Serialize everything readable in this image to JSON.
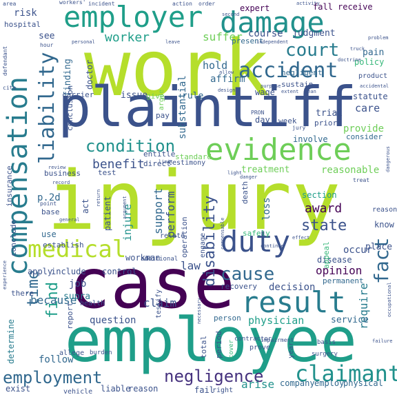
{
  "wordcloud": {
    "words": {
      "injury": "injury",
      "work": "work",
      "plaintiff": "plaintiff",
      "employee": "employee",
      "case": "case",
      "employer": "employer",
      "damage": "damage",
      "evidence": "evidence",
      "compensation": "compensation",
      "result": "result",
      "duty": "duty",
      "medical": "medical",
      "accident": "accident",
      "court": "court",
      "liability": "liability",
      "condition": "condition",
      "claimant": "claimant",
      "employment": "employment",
      "negligence": "negligence",
      "cause": "cause",
      "fact": "fact",
      "benefit": "benefit",
      "time": "time",
      "find": "find",
      "disability": "disability",
      "state": "state",
      "award": "award",
      "opinion": "opinion",
      "worker": "worker",
      "suffer": "suffer",
      "course": "course",
      "judgment": "judgment",
      "provide": "provide",
      "care": "care",
      "reasonable": "reasonable",
      "treatment": "treatment",
      "physician": "physician",
      "claim": "claim",
      "question": "question",
      "because": "because",
      "follow": "follow",
      "decision": "decision",
      "require": "require",
      "service": "service",
      "law": "law",
      "job": "job",
      "issue": "issue",
      "rule": "rule",
      "hold": "hold",
      "affirm": "affirm",
      "risk": "risk",
      "hospital": "hospital",
      "see": "see",
      "present": "present",
      "expert": "expert",
      "receive": "receive",
      "fall": "fall",
      "pain": "pain",
      "policy": "policy",
      "negligent": "negligent",
      "sustain": "sustain",
      "wage": "wage",
      "doctor": "doctor",
      "finding": "finding",
      "carrier": "carrier",
      "substantial": "substantial",
      "trial": "trial",
      "statute": "statute",
      "prior": "prior",
      "week": "week",
      "day": "day",
      "consider": "consider",
      "involve": "involve",
      "standard": "standard",
      "entitle": "entitle",
      "support": "support",
      "perform": "perform",
      "patient": "patient",
      "act": "act",
      "injure": "injure",
      "loss": "loss",
      "section": "section",
      "occur": "occur",
      "permanent": "permanent",
      "disease": "disease",
      "recovery": "recovery",
      "establish": "establish",
      "workman": "workman",
      "use": "use",
      "p2d": "p.2d",
      "conclude": "conclude",
      "include": "include",
      "apply": "apply",
      "control": "control",
      "supra": "supra",
      "determine": "determine",
      "report": "report",
      "person": "person",
      "arise": "arise",
      "company": "company",
      "employ": "employ",
      "physical": "physical",
      "exist": "exist",
      "fail": "fail",
      "reason": "reason",
      "liable": "liable",
      "test": "test",
      "business": "business",
      "insurance": "insurance",
      "know": "know",
      "place": "place",
      "appeal": "appeal",
      "testimony": "testimony",
      "direct": "direct",
      "give": "give",
      "argue": "argue",
      "pay": "pay",
      "total": "total",
      "perhaps": "period",
      "testify": "testify",
      "health": "health",
      "there": "there",
      "operation": "operation",
      "relate": "relate",
      "conclusion": "conclusion",
      "death": "death",
      "engage": "engage",
      "safely": "safely",
      "additional": "additional",
      "prove": "prove",
      "burden": "burden",
      "allege": "allege",
      "vehicle": "vehicle",
      "right": "right",
      "basis": "basis",
      "reasonably": "reasonably",
      "contractor": "contractor",
      "impairment": "impairment",
      "surgery": "surgery",
      "year": "year",
      "cover": "cover",
      "area": "area",
      "workers": "workers'",
      "incident": "incident",
      "action": "action",
      "order": "order",
      "second": "second",
      "activity": "activity",
      "leave": "leave",
      "personal": "personal",
      "hour": "hour",
      "independent": "independent",
      "problem": "problem",
      "truck": "truck",
      "doctrine": "doctrine",
      "defendant": "defendant",
      "allow": "allow",
      "cite": "cite",
      "purpose": "purpose",
      "extent": "extent",
      "mean": "mean",
      "design": "design",
      "product": "product",
      "accidental": "accidental",
      "jury": "jury",
      "pron": "PRON",
      "dangerous": "dangerous",
      "treat": "treat",
      "danger": "danger",
      "light": "light",
      "limit": "limit",
      "review": "review",
      "record": "record",
      "general": "general",
      "return": "return",
      "argument": "argument",
      "effect": "effect",
      "continue": "continue",
      "point": "point",
      "base": "base",
      "experience": "experience",
      "compensable": "compensable",
      "necessary": "necessary",
      "failure": "failure",
      "duty2": "duty",
      "contractor2": "contract",
      "occupational": "occupational"
    }
  }
}
